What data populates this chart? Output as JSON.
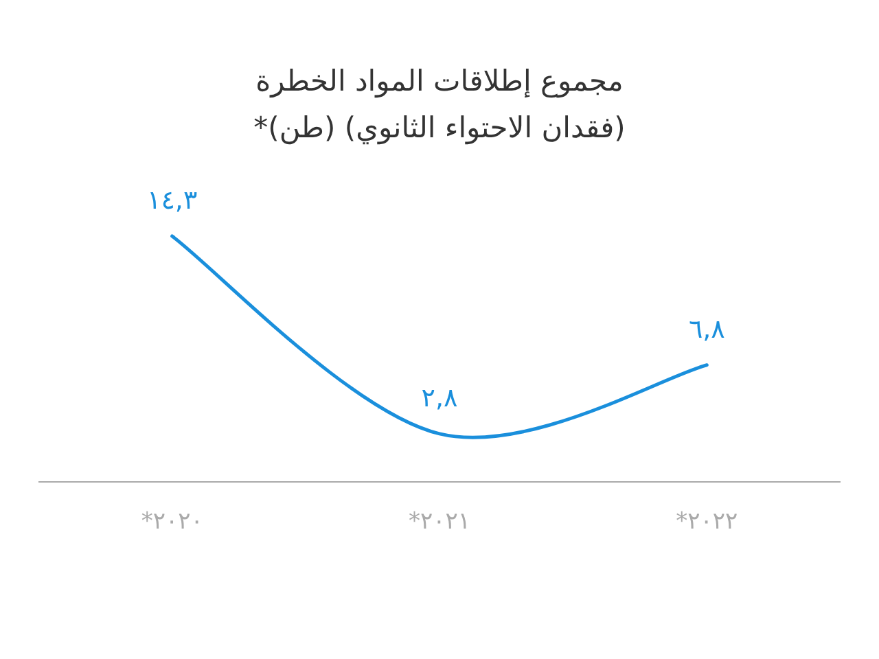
{
  "chart_data": {
    "type": "line",
    "title": "مجموع إطلاقات المواد الخطرة",
    "subtitle": "(فقدان الاحتواء الثانوي) (طن)*",
    "categories": [
      "٢٠٢٠*",
      "٢٠٢١*",
      "٢٠٢٢*"
    ],
    "values": [
      14.3,
      2.8,
      6.8
    ],
    "value_labels": [
      "١٤,٣",
      "٢,٨",
      "٦,٨"
    ],
    "color": "#1a8fdc",
    "marker": "none",
    "line_style": "solid"
  }
}
